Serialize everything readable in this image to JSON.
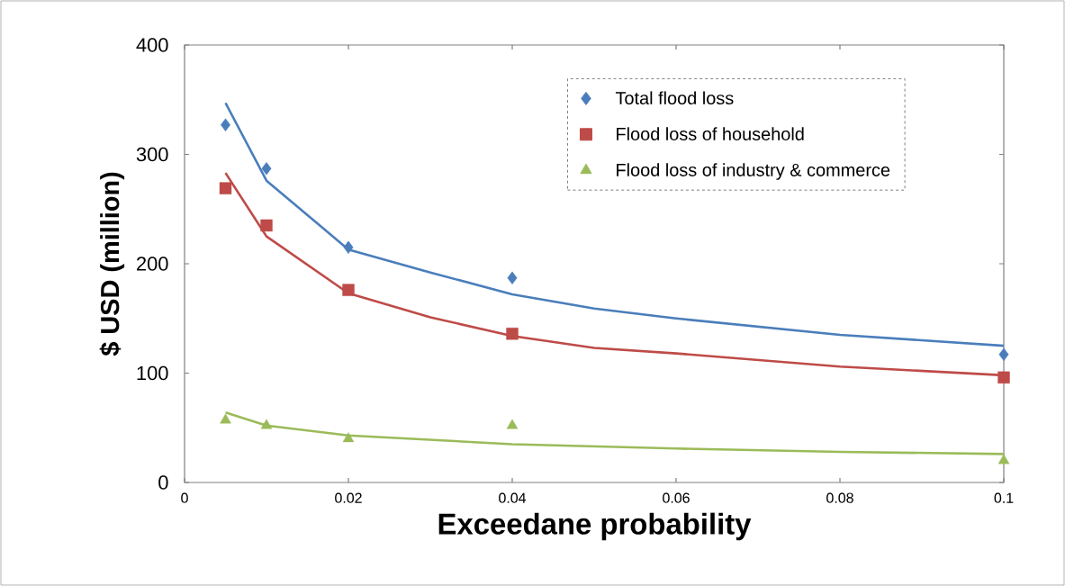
{
  "chart_data": {
    "type": "scatter",
    "xlabel": "Exceedane probability",
    "ylabel": "$ USD (million)",
    "xlim": [
      0,
      0.1
    ],
    "ylim": [
      0,
      400
    ],
    "xticks": [
      0,
      0.02,
      0.04,
      0.06,
      0.08,
      0.1
    ],
    "yticks": [
      0,
      100,
      200,
      300,
      400
    ],
    "grid": false,
    "legend": "top right",
    "series": [
      {
        "name": "Total flood loss",
        "marker": "diamond",
        "color": "#4a7ebb",
        "x": [
          0.005,
          0.01,
          0.02,
          0.04,
          0.1
        ],
        "values": [
          327,
          287,
          215,
          187,
          117
        ]
      },
      {
        "name": "Flood loss of household",
        "marker": "square",
        "color": "#be4b48",
        "x": [
          0.005,
          0.01,
          0.02,
          0.04,
          0.1
        ],
        "values": [
          269,
          235,
          176,
          136,
          96
        ]
      },
      {
        "name": "Flood loss of industry & commerce",
        "marker": "triangle",
        "color": "#9bbb59",
        "x": [
          0.005,
          0.01,
          0.02,
          0.04,
          0.1
        ],
        "values": [
          57,
          52,
          40,
          52,
          20
        ]
      },
      {
        "type": "line",
        "color": "#4a7ebb",
        "x": [
          0.005,
          0.01,
          0.02,
          0.03,
          0.04,
          0.05,
          0.06,
          0.08,
          0.1
        ],
        "values": [
          347,
          276,
          213,
          192,
          172,
          159,
          150,
          135,
          125
        ]
      },
      {
        "type": "line",
        "color": "#be4b48",
        "x": [
          0.005,
          0.01,
          0.02,
          0.03,
          0.04,
          0.05,
          0.06,
          0.08,
          0.1
        ],
        "values": [
          283,
          225,
          173,
          151,
          134,
          123,
          118,
          106,
          98
        ]
      },
      {
        "type": "line",
        "color": "#9bbb59",
        "x": [
          0.005,
          0.01,
          0.02,
          0.04,
          0.06,
          0.08,
          0.1
        ],
        "values": [
          64,
          52,
          43,
          35,
          31,
          28,
          26
        ]
      }
    ]
  }
}
